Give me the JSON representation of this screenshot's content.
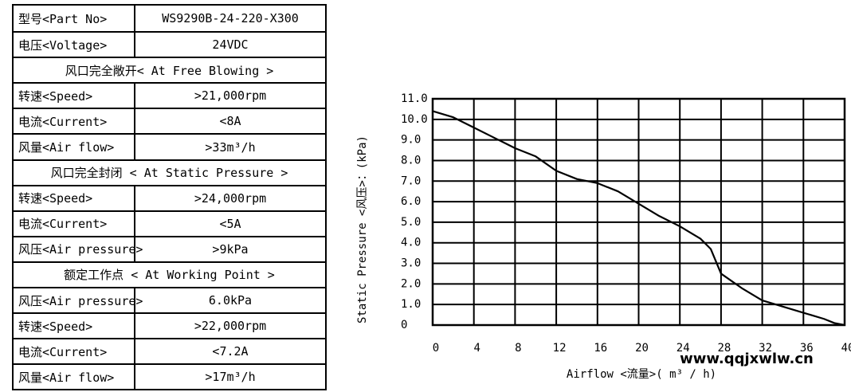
{
  "table": {
    "rows": [
      [
        "型号<Part No>",
        "WS9290B-24-220-X300"
      ],
      [
        "电压<Voltage>",
        "24VDC"
      ],
      [
        "风口完全敞开< At Free Blowing >"
      ],
      [
        "转速<Speed>",
        ">21,000rpm"
      ],
      [
        "电流<Current>",
        "<8A"
      ],
      [
        "风量<Air flow>",
        ">33m³/h"
      ],
      [
        "风口完全封闭 < At Static Pressure >"
      ],
      [
        "转速<Speed>",
        ">24,000rpm"
      ],
      [
        "电流<Current>",
        "<5A"
      ],
      [
        "风压<Air pressure>",
        ">9kPa"
      ],
      [
        "额定工作点 < At Working Point >"
      ],
      [
        "风压<Air pressure>",
        "6.0kPa"
      ],
      [
        "转速<Speed>",
        ">22,000rpm"
      ],
      [
        "电流<Current>",
        "<7.2A"
      ],
      [
        "风量<Air flow>",
        ">17m³/h"
      ]
    ]
  },
  "chart_data": {
    "type": "line",
    "x_label": "Airflow  <流量>( m³ / h)",
    "y_label": "Static  Pressure  <风压>：(kPa)",
    "watermark": "www.qqjxwlw.cn",
    "x": [
      0,
      2,
      4,
      6,
      8,
      10,
      12,
      14,
      16,
      18,
      20,
      22,
      24,
      26,
      27,
      28,
      30,
      32,
      34,
      36,
      38,
      39,
      40
    ],
    "values": [
      10.4,
      10.1,
      9.6,
      9.1,
      8.6,
      8.2,
      7.5,
      7.1,
      6.9,
      6.5,
      5.9,
      5.3,
      4.8,
      4.2,
      3.7,
      2.5,
      1.8,
      1.2,
      0.9,
      0.6,
      0.3,
      0.1,
      0
    ],
    "color": "#000000",
    "xlim": [
      0,
      40
    ],
    "xticks": [
      0,
      4,
      8,
      12,
      16,
      20,
      24,
      28,
      32,
      36,
      40
    ],
    "ylim": [
      0,
      11
    ],
    "yticks": [
      0,
      {
        "value": 1,
        "label": "1.0"
      },
      {
        "value": 2,
        "label": "2.0"
      },
      {
        "value": 3,
        "label": "3.0"
      },
      {
        "value": 4,
        "label": "4.0"
      },
      {
        "value": 5,
        "label": "5.0"
      },
      {
        "value": 6,
        "label": "6.0"
      },
      {
        "value": 7,
        "label": "7.0"
      },
      {
        "value": 8,
        "label": "8.0"
      },
      {
        "value": 9,
        "label": "9.0"
      },
      {
        "value": 10,
        "label": "10.0"
      },
      {
        "value": 11,
        "label": "11.0"
      }
    ],
    "grid": true
  }
}
